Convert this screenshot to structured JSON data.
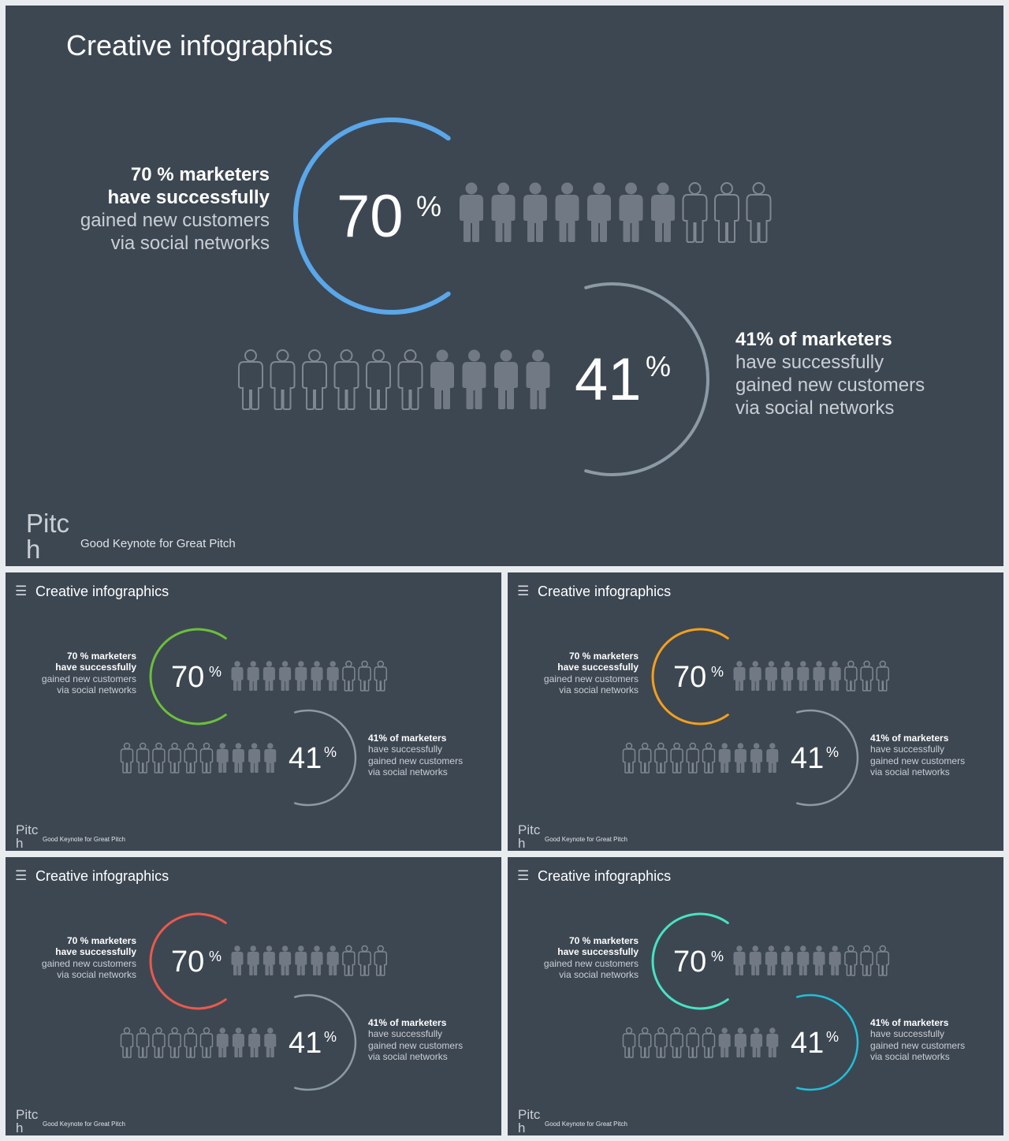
{
  "slide": {
    "title": "Creative infographics",
    "menu_icon": "hamburger-menu-icon",
    "logo_line1": "Pitc",
    "logo_line2": "h",
    "tagline": "Good Keynote for Great Pitch"
  },
  "stat70": {
    "value": "70",
    "unit": "%",
    "fraction": 0.7,
    "filled_people": 7,
    "total_people": 10,
    "line1": "70 % marketers",
    "line2": "have successfully",
    "line3": "gained new customers",
    "line4": "via social networks"
  },
  "stat41": {
    "value": "41",
    "unit": "%",
    "fraction": 0.41,
    "filled_people": 4,
    "total_people": 10,
    "line1": "41% of marketers",
    "line2": "have successfully",
    "line3": "gained new customers",
    "line4": "via social networks"
  },
  "variants": [
    {
      "name": "blue",
      "ring70_color": "#5aa7ea",
      "ring41_color": "#8c9aa5"
    },
    {
      "name": "green",
      "ring70_color": "#6cbf3c",
      "ring41_color": "#8c9aa5"
    },
    {
      "name": "orange",
      "ring70_color": "#f3a01e",
      "ring41_color": "#8c9aa5"
    },
    {
      "name": "red",
      "ring70_color": "#e95a4c",
      "ring41_color": "#8c9aa5"
    },
    {
      "name": "teal",
      "ring70_color": "#47e3c2",
      "ring41_color": "#22bfd9"
    }
  ],
  "colors": {
    "background": "#3d4752",
    "person_fill": "#717a84",
    "person_outline": "#7f8891"
  }
}
